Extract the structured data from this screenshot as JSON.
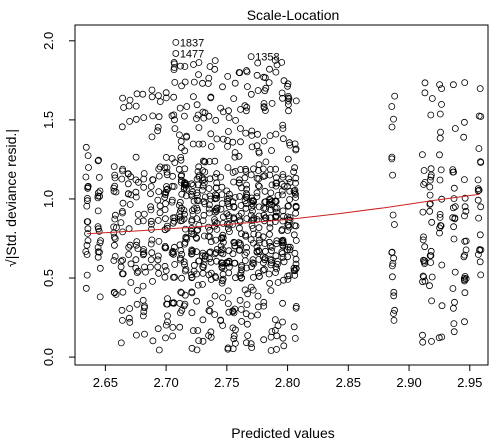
{
  "chart_data": {
    "type": "scatter",
    "title": "Scale-Location",
    "xlabel": "Predicted values",
    "ylabel": "√|Std. deviance resid.|",
    "xlim": [
      2.625,
      2.965
    ],
    "ylim": [
      -0.05,
      2.1
    ],
    "xticks": [
      "2.65",
      "2.70",
      "2.75",
      "2.80",
      "2.85",
      "2.90",
      "2.95"
    ],
    "yticks": [
      "0.0",
      "0.5",
      "1.0",
      "1.5",
      "2.0"
    ],
    "x_columns": [
      2.635,
      2.645,
      2.658,
      2.664,
      2.67,
      2.676,
      2.682,
      2.688,
      2.694,
      2.7,
      2.706,
      2.712,
      2.716,
      2.722,
      2.726,
      2.731,
      2.736,
      2.741,
      2.746,
      2.751,
      2.756,
      2.761,
      2.766,
      2.771,
      2.776,
      2.781,
      2.786,
      2.791,
      2.796,
      2.801,
      2.806,
      2.887,
      2.912,
      2.918,
      2.926,
      2.937,
      2.946,
      2.958
    ],
    "trend_line": {
      "color": "#cc2222",
      "x": [
        2.635,
        2.68,
        2.72,
        2.76,
        2.8,
        2.84,
        2.88,
        2.92,
        2.958
      ],
      "y": [
        0.78,
        0.8,
        0.82,
        0.845,
        0.87,
        0.905,
        0.945,
        0.99,
        1.03
      ]
    },
    "annotations": [
      {
        "label": "1837",
        "x": 2.708,
        "y": 1.99
      },
      {
        "label": "1477",
        "x": 2.708,
        "y": 1.92
      },
      {
        "label": "1358",
        "x": 2.77,
        "y": 1.9
      }
    ],
    "point_style": "open-circle",
    "grid": false
  }
}
